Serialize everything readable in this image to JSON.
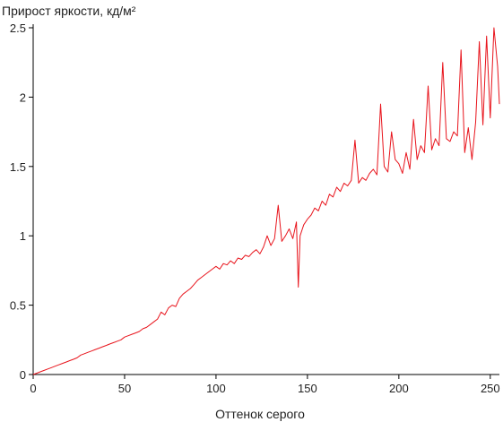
{
  "chart_data": {
    "type": "line",
    "title": "Прирост яркости, кд/м²",
    "xlabel": "Оттенок серого",
    "ylabel": "",
    "xlim": [
      0,
      255
    ],
    "ylim": [
      0,
      2.5
    ],
    "x_ticks": [
      0,
      50,
      100,
      150,
      200,
      250
    ],
    "y_ticks": [
      0,
      0.5,
      1,
      1.5,
      2,
      2.5
    ],
    "x_tick_labels": [
      "0",
      "50",
      "100",
      "150",
      "200",
      "250"
    ],
    "y_tick_labels": [
      "0",
      "0.5",
      "1",
      "1.5",
      "2",
      "2.5"
    ],
    "grid": false,
    "legend": "none",
    "series": [
      {
        "color": "#e8141c",
        "x": [
          0,
          2,
          4,
          6,
          8,
          10,
          12,
          14,
          16,
          18,
          20,
          22,
          24,
          26,
          28,
          30,
          32,
          34,
          36,
          38,
          40,
          42,
          44,
          46,
          48,
          50,
          52,
          54,
          56,
          58,
          60,
          62,
          64,
          66,
          68,
          70,
          72,
          74,
          76,
          78,
          80,
          82,
          84,
          86,
          88,
          90,
          92,
          94,
          96,
          98,
          100,
          102,
          104,
          106,
          108,
          110,
          112,
          114,
          116,
          118,
          120,
          122,
          124,
          126,
          128,
          130,
          132,
          134,
          136,
          138,
          140,
          142,
          144,
          145,
          146,
          148,
          150,
          152,
          154,
          156,
          158,
          160,
          162,
          164,
          166,
          168,
          170,
          172,
          174,
          176,
          178,
          180,
          182,
          184,
          186,
          188,
          190,
          192,
          194,
          196,
          198,
          200,
          202,
          204,
          206,
          208,
          210,
          212,
          214,
          216,
          218,
          220,
          222,
          224,
          226,
          228,
          230,
          232,
          234,
          236,
          238,
          240,
          242,
          244,
          246,
          248,
          250,
          252,
          254,
          255
        ],
        "y": [
          0,
          0.01,
          0.02,
          0.03,
          0.04,
          0.05,
          0.06,
          0.07,
          0.08,
          0.09,
          0.1,
          0.11,
          0.12,
          0.14,
          0.15,
          0.16,
          0.17,
          0.18,
          0.19,
          0.2,
          0.21,
          0.22,
          0.23,
          0.24,
          0.25,
          0.27,
          0.28,
          0.29,
          0.3,
          0.31,
          0.33,
          0.34,
          0.36,
          0.38,
          0.4,
          0.45,
          0.43,
          0.48,
          0.5,
          0.49,
          0.55,
          0.58,
          0.6,
          0.62,
          0.65,
          0.68,
          0.7,
          0.72,
          0.74,
          0.76,
          0.78,
          0.76,
          0.8,
          0.79,
          0.82,
          0.8,
          0.84,
          0.83,
          0.86,
          0.85,
          0.88,
          0.9,
          0.87,
          0.92,
          1.0,
          0.93,
          0.98,
          1.22,
          0.96,
          1.0,
          1.05,
          0.98,
          1.1,
          0.63,
          1.0,
          1.08,
          1.12,
          1.15,
          1.2,
          1.18,
          1.25,
          1.22,
          1.3,
          1.28,
          1.35,
          1.32,
          1.38,
          1.36,
          1.4,
          1.69,
          1.38,
          1.42,
          1.4,
          1.45,
          1.48,
          1.44,
          1.95,
          1.5,
          1.46,
          1.75,
          1.55,
          1.52,
          1.45,
          1.6,
          1.48,
          1.84,
          1.55,
          1.65,
          1.6,
          2.08,
          1.62,
          1.7,
          1.65,
          2.25,
          1.7,
          1.68,
          1.75,
          1.72,
          2.34,
          1.6,
          1.78,
          1.55,
          1.82,
          2.4,
          1.8,
          2.44,
          1.85,
          2.5,
          2.22,
          1.95
        ]
      }
    ]
  }
}
